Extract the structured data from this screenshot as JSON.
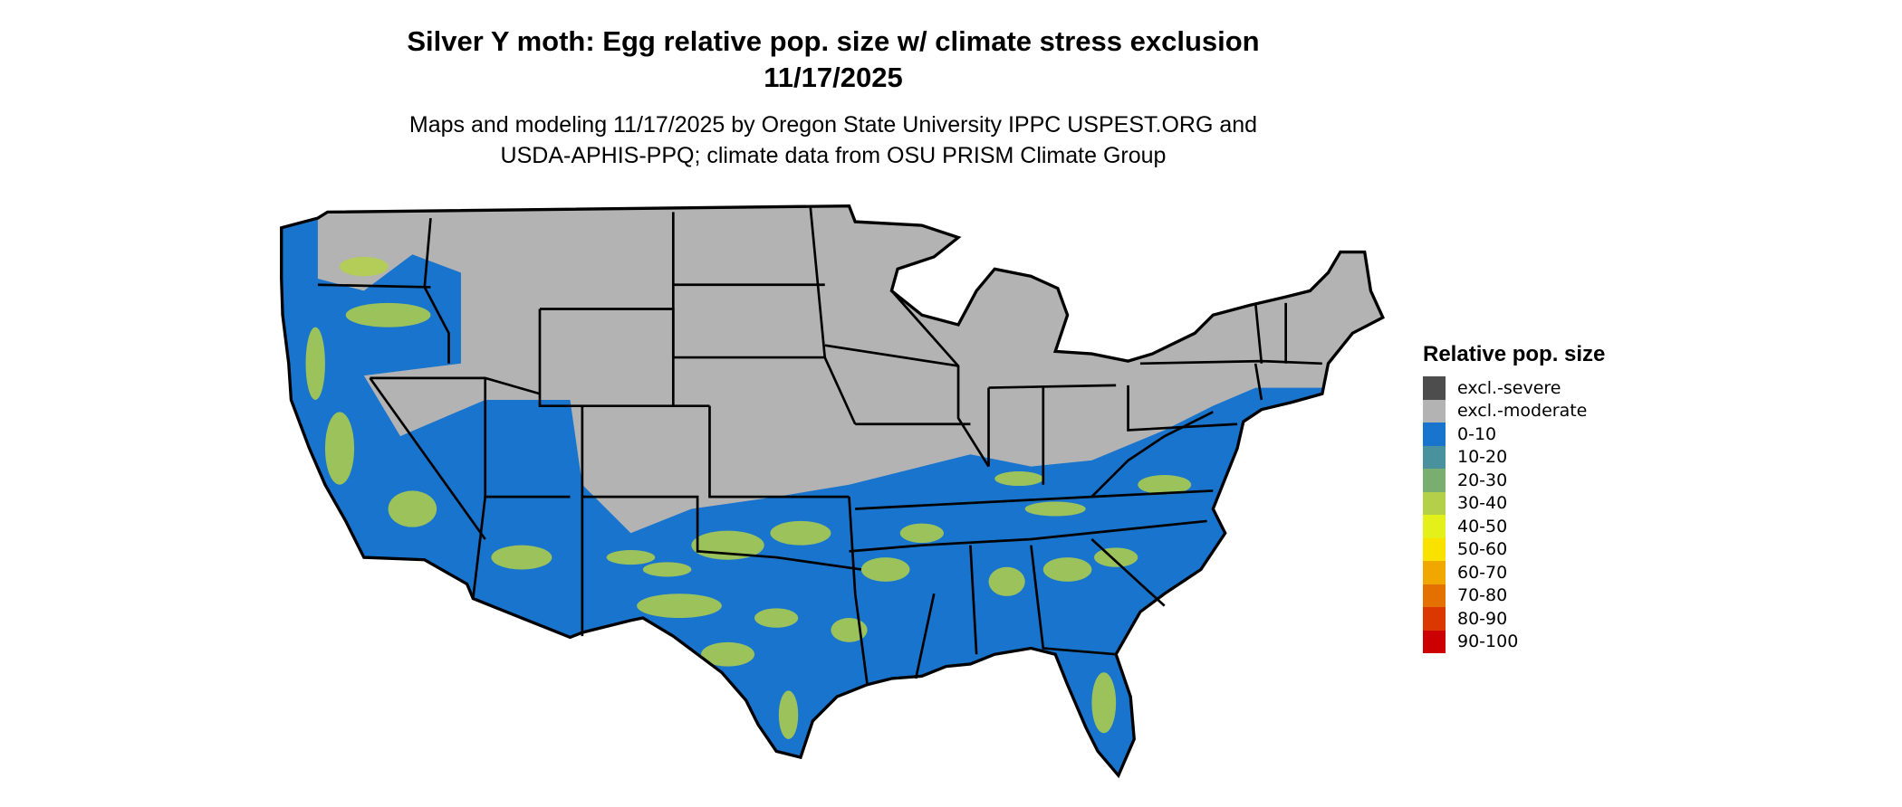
{
  "header": {
    "title_line1": "Silver Y moth: Egg relative pop. size w/ climate stress exclusion",
    "title_line2": "11/17/2025",
    "subtitle_line1": "Maps and modeling 11/17/2025 by Oregon State University IPPC USPEST.ORG and",
    "subtitle_line2": "USDA-APHIS-PPQ; climate data from OSU PRISM Climate Group"
  },
  "legend": {
    "title": "Relative pop. size",
    "items": [
      {
        "label": "excl.-severe",
        "color": "#4d4d4d"
      },
      {
        "label": "excl.-moderate",
        "color": "#b3b3b3"
      },
      {
        "label": "0-10",
        "color": "#1874cd"
      },
      {
        "label": "10-20",
        "color": "#4a919e"
      },
      {
        "label": "20-30",
        "color": "#7aae70"
      },
      {
        "label": "30-40",
        "color": "#b4d048"
      },
      {
        "label": "40-50",
        "color": "#e4f01a"
      },
      {
        "label": "50-60",
        "color": "#f9e100"
      },
      {
        "label": "60-70",
        "color": "#f0a800"
      },
      {
        "label": "70-80",
        "color": "#e47000"
      },
      {
        "label": "80-90",
        "color": "#da3800"
      },
      {
        "label": "90-100",
        "color": "#cc0000"
      }
    ]
  },
  "map": {
    "region": "Contiguous United States",
    "colors": {
      "excluded": "#b3b3b3",
      "low": "#1874cd",
      "mid": "#b4d048",
      "border": "#000000"
    }
  }
}
